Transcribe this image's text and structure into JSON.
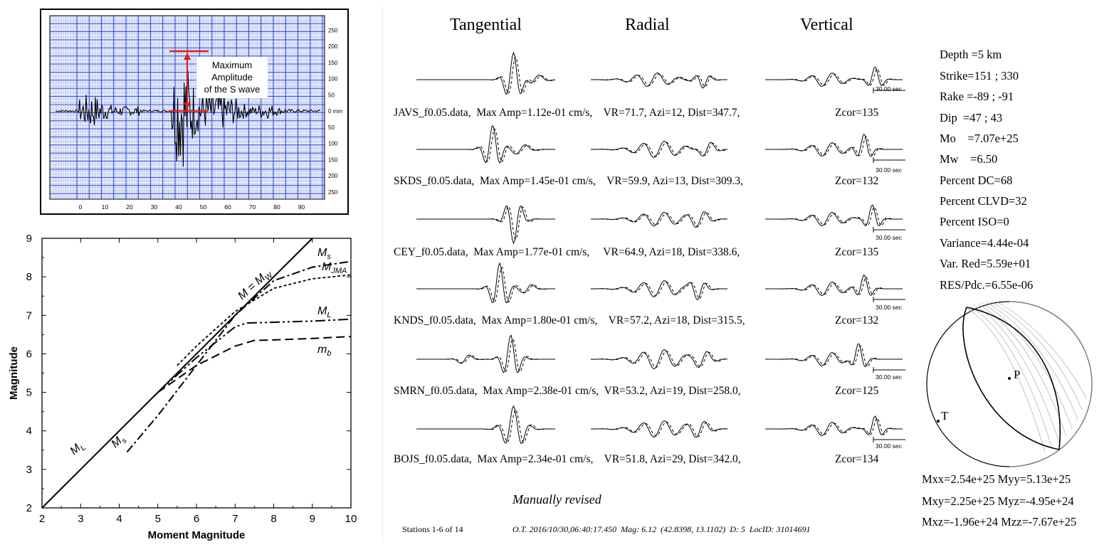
{
  "seismogram": {
    "right_ticks": [
      "250",
      "200",
      "150",
      "100",
      "50",
      "0 mm",
      "50",
      "100",
      "150",
      "200",
      "250"
    ],
    "bottom_ticks": [
      "0",
      "10",
      "20",
      "30",
      "40",
      "50",
      "60",
      "70",
      "80",
      "90"
    ],
    "annotation": [
      "Maximum",
      "Amplitude",
      "of the S wave"
    ],
    "colors": {
      "grid": "#1f3fd8",
      "paper": "#c9d2f4",
      "arrow": "#e02020"
    }
  },
  "magnitude_chart": {
    "xlabel": "Moment Magnitude",
    "ylabel": "Magnitude",
    "x_ticks": [
      "2",
      "3",
      "4",
      "5",
      "6",
      "7",
      "8",
      "9",
      "10"
    ],
    "y_ticks": [
      "2",
      "3",
      "4",
      "5",
      "6",
      "7",
      "8",
      "9"
    ],
    "curve_labels": {
      "mw": "M = M",
      "mw_sub": "W",
      "ms_top": "M",
      "ms_top_sub": "s",
      "mjma": "M",
      "mjma_sub": "JMA",
      "ml_right": "M",
      "ml_right_sub": "L",
      "mb": "m",
      "mb_sub": "b",
      "ml_left": "M",
      "ml_left_sub": "L",
      "ms_left": "M",
      "ms_left_sub": "s"
    }
  },
  "chart_data": {
    "type": "line",
    "xlabel": "Moment Magnitude",
    "ylabel": "Magnitude",
    "xlim": [
      2,
      10
    ],
    "ylim": [
      2,
      9
    ],
    "series": [
      {
        "name": "M = MW",
        "x": [
          2,
          9
        ],
        "y": [
          2,
          9
        ]
      },
      {
        "name": "Ms",
        "x": [
          4.2,
          5,
          6,
          7,
          8,
          9,
          10
        ],
        "y": [
          3.45,
          4.4,
          5.7,
          7.0,
          7.9,
          8.25,
          8.4
        ]
      },
      {
        "name": "MJMA",
        "x": [
          5.5,
          6,
          7,
          8,
          9,
          10
        ],
        "y": [
          5.7,
          6.2,
          7.1,
          7.7,
          7.95,
          8.05
        ]
      },
      {
        "name": "ML",
        "x": [
          5,
          6,
          7,
          7.3,
          8,
          9,
          10
        ],
        "y": [
          5.0,
          5.9,
          6.7,
          6.8,
          6.82,
          6.85,
          6.9
        ]
      },
      {
        "name": "mb",
        "x": [
          5,
          6,
          7,
          7.5,
          8,
          9,
          10
        ],
        "y": [
          5.0,
          5.7,
          6.2,
          6.35,
          6.36,
          6.4,
          6.45
        ]
      }
    ],
    "grid": false
  },
  "moment_tensor_figure": {
    "headers": [
      "Tangential",
      "Radial",
      "Vertical"
    ],
    "stations": [
      {
        "label": "JAVS_f0.05.data,  Max Amp=1.12e-01 cm/s,    VR=71.7, Azi=12, Dist=347.7,",
        "zcor": "Zcor=135"
      },
      {
        "label": "SKDS_f0.05.data,  Max Amp=1.45e-01 cm/s,    VR=59.9, Azi=13, Dist=309.3,",
        "zcor": "Zcor=132"
      },
      {
        "label": "CEY_f0.05.data,  Max Amp=1.77e-01 cm/s,     VR=64.9, Azi=18, Dist=338.6,",
        "zcor": "Zcor=135"
      },
      {
        "label": "KNDS_f0.05.data,  Max Amp=1.80e-01 cm/s,    VR=57.2, Azi=18, Dist=315.5,",
        "zcor": "Zcor=132"
      },
      {
        "label": "SMRN_f0.05.data,  Max Amp=2.38e-01 cm/s,  VR=53.2, Azi=19, Dist=258.0,",
        "zcor": "Zcor=125"
      },
      {
        "label": "BOJS_f0.05.data,  Max Amp=2.34e-01 cm/s,    VR=51.8, Azi=29, Dist=342.0,",
        "zcor": "Zcor=134"
      }
    ],
    "time_scale": "30.00 sec",
    "params": [
      "Depth =5 km",
      "Strike=151 ; 330",
      "Rake =-89 ; -91",
      "Dip  =47 ; 43",
      "Mo    =7.07e+25",
      "Mw    =6.50",
      "Percent DC=68",
      "Percent CLVD=32",
      "Percent ISO=0",
      "Variance=4.44e-04",
      "Var. Red=5.59e+01",
      "RES/Pdc.=6.55e-06"
    ],
    "beachball": {
      "p_label": "P",
      "t_label": "T"
    },
    "tensor": [
      "Mxx=2.54e+25 Myy=5.13e+25",
      "Mxy=2.25e+25 Myz=-4.95e+24",
      "Mxz=-1.96e+24 Mzz=-7.67e+25"
    ],
    "revised": "Manually revised",
    "footer_left": "Stations 1-6 of 14",
    "footer_right": "O.T. 2016/10/30,06:40:17.450  Mag: 6.12  (42.8398, 13.1102)  D: 5  LocID: 31014691"
  }
}
